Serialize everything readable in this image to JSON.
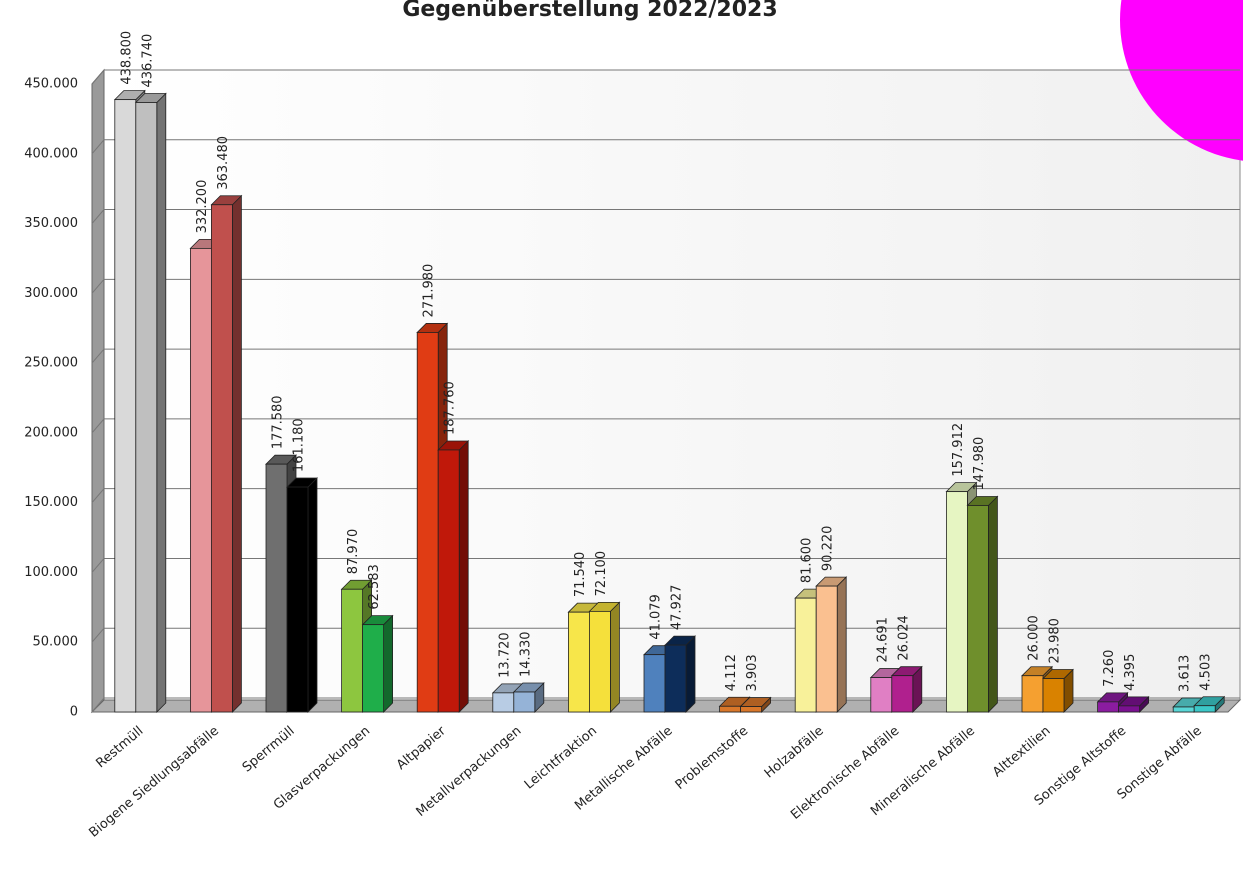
{
  "chart_data": {
    "type": "bar3d",
    "title": "Gegenüberstellung 2022/2023",
    "categories": [
      "Restmüll",
      "Biogene Siedlungsabfälle",
      "Sperrmüll",
      "Glasverpackungen",
      "Altpapier",
      "Metallverpackungen",
      "Leichtfraktion",
      "Metallische Abfälle",
      "Problemstoffe",
      "Holzabfälle",
      "Elektronische Abfälle",
      "Mineralische Abfälle",
      "Alttextilien",
      "Sonstige Altstoffe",
      "Sonstige Abfälle"
    ],
    "series": [
      {
        "colors": [
          "#d9d9d9",
          "#e6959a",
          "#6f6f6f",
          "#8dc63f",
          "#e03c14",
          "#b8cce4",
          "#f7e64a",
          "#4f81bd",
          "#d9772a",
          "#f8f19a",
          "#e07fc4",
          "#e6f5c2",
          "#f5a030",
          "#8b1ca0",
          "#59d6d6"
        ],
        "values": [
          438800,
          332200,
          177580,
          87970,
          271980,
          13720,
          71540,
          41079,
          4112,
          81600,
          24691,
          157912,
          26000,
          7260,
          3613
        ],
        "value_labels": [
          "438.800",
          "332.200",
          "177.580",
          "87.970",
          "271.980",
          "13.720",
          "71.540",
          "41.079",
          "4.112",
          "81.600",
          "24.691",
          "157.912",
          "26.000",
          "7.260",
          "3.613"
        ]
      },
      {
        "colors": [
          "#bfbfbf",
          "#c0504d",
          "#000000",
          "#1fae4a",
          "#c0180a",
          "#95b3d7",
          "#f5e03b",
          "#0d2d5a",
          "#d9772a",
          "#fac090",
          "#b0208e",
          "#6f8f2c",
          "#d98200",
          "#7a1190",
          "#3cc8c8"
        ],
        "values": [
          436740,
          363480,
          161180,
          62583,
          187760,
          14330,
          72100,
          47927,
          3903,
          90220,
          26024,
          147980,
          23980,
          4395,
          4503
        ],
        "value_labels": [
          "436.740",
          "363.480",
          "161.180",
          "62.583",
          "187.760",
          "14.330",
          "72.100",
          "47.927",
          "3.903",
          "90.220",
          "26.024",
          "147.980",
          "23.980",
          "4.395",
          "4.503"
        ]
      }
    ],
    "ylim": [
      0,
      450000
    ],
    "yticks": [
      0,
      {
        "value": 50000,
        "label": "50.000"
      },
      {
        "value": 100000,
        "label": "100.000"
      },
      {
        "value": 150000,
        "label": "150.000"
      },
      {
        "value": 200000,
        "label": "200.000"
      },
      {
        "value": 250000,
        "label": "250.000"
      },
      {
        "value": 300000,
        "label": "300.000"
      },
      {
        "value": 350000,
        "label": "350.000"
      },
      {
        "value": 400000,
        "label": "400.000"
      },
      {
        "value": 450000,
        "label": "450.000"
      }
    ],
    "grid": true
  }
}
